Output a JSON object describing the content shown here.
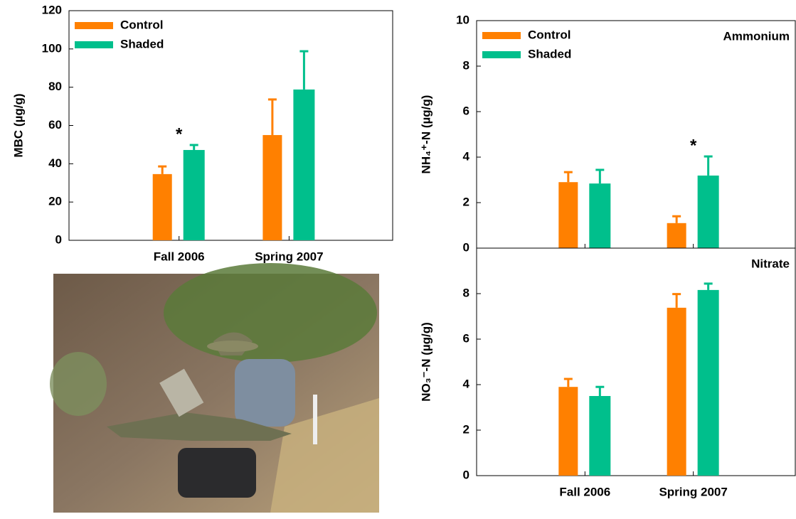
{
  "chart_data": [
    {
      "type": "bar",
      "ylabel": "MBC (µg/g)",
      "categories": [
        "Fall 2006",
        "Spring 2007"
      ],
      "series": [
        {
          "name": "Control",
          "color": "#ff8000",
          "values": [
            34.6,
            55
          ],
          "errors": [
            4,
            18.6
          ]
        },
        {
          "name": "Shaded",
          "color": "#00bf8c",
          "values": [
            47.2,
            78.8
          ],
          "errors": [
            2.6,
            20
          ]
        }
      ],
      "ylim": [
        0,
        120
      ],
      "yticks": [
        0,
        20,
        40,
        60,
        80,
        100,
        120
      ],
      "legend": "upper left",
      "annotations": [
        {
          "text": "*",
          "category": 0
        }
      ]
    },
    {
      "type": "bar",
      "title": "Ammonium",
      "ylabel": "NH₄⁺-N (µg/g)",
      "categories": [
        null,
        null
      ],
      "series": [
        {
          "name": "Control",
          "color": "#ff8000",
          "values": [
            2.9,
            1.1
          ],
          "errors": [
            0.44,
            0.3
          ]
        },
        {
          "name": "Shaded",
          "color": "#00bf8c",
          "values": [
            2.84,
            3.19
          ],
          "errors": [
            0.6,
            0.84
          ]
        }
      ],
      "ylim": [
        0,
        10
      ],
      "yticks": [
        0,
        2,
        4,
        6,
        8,
        10
      ],
      "legend": "upper left",
      "annotations": [
        {
          "text": "*",
          "category": 1
        }
      ]
    },
    {
      "type": "bar",
      "title": "Nitrate",
      "ylabel": "NO₃⁻-N (µg/g)",
      "categories": [
        "Fall 2006",
        "Spring 2007"
      ],
      "series": [
        {
          "color": "#ff8000",
          "values": [
            3.9,
            7.38
          ],
          "errors": [
            0.35,
            0.6
          ]
        },
        {
          "color": "#00bf8c",
          "values": [
            3.5,
            8.16
          ],
          "errors": [
            0.4,
            0.28
          ]
        }
      ],
      "ylim": [
        0,
        10
      ],
      "yticks": [
        0,
        2,
        4,
        6,
        8
      ]
    }
  ]
}
